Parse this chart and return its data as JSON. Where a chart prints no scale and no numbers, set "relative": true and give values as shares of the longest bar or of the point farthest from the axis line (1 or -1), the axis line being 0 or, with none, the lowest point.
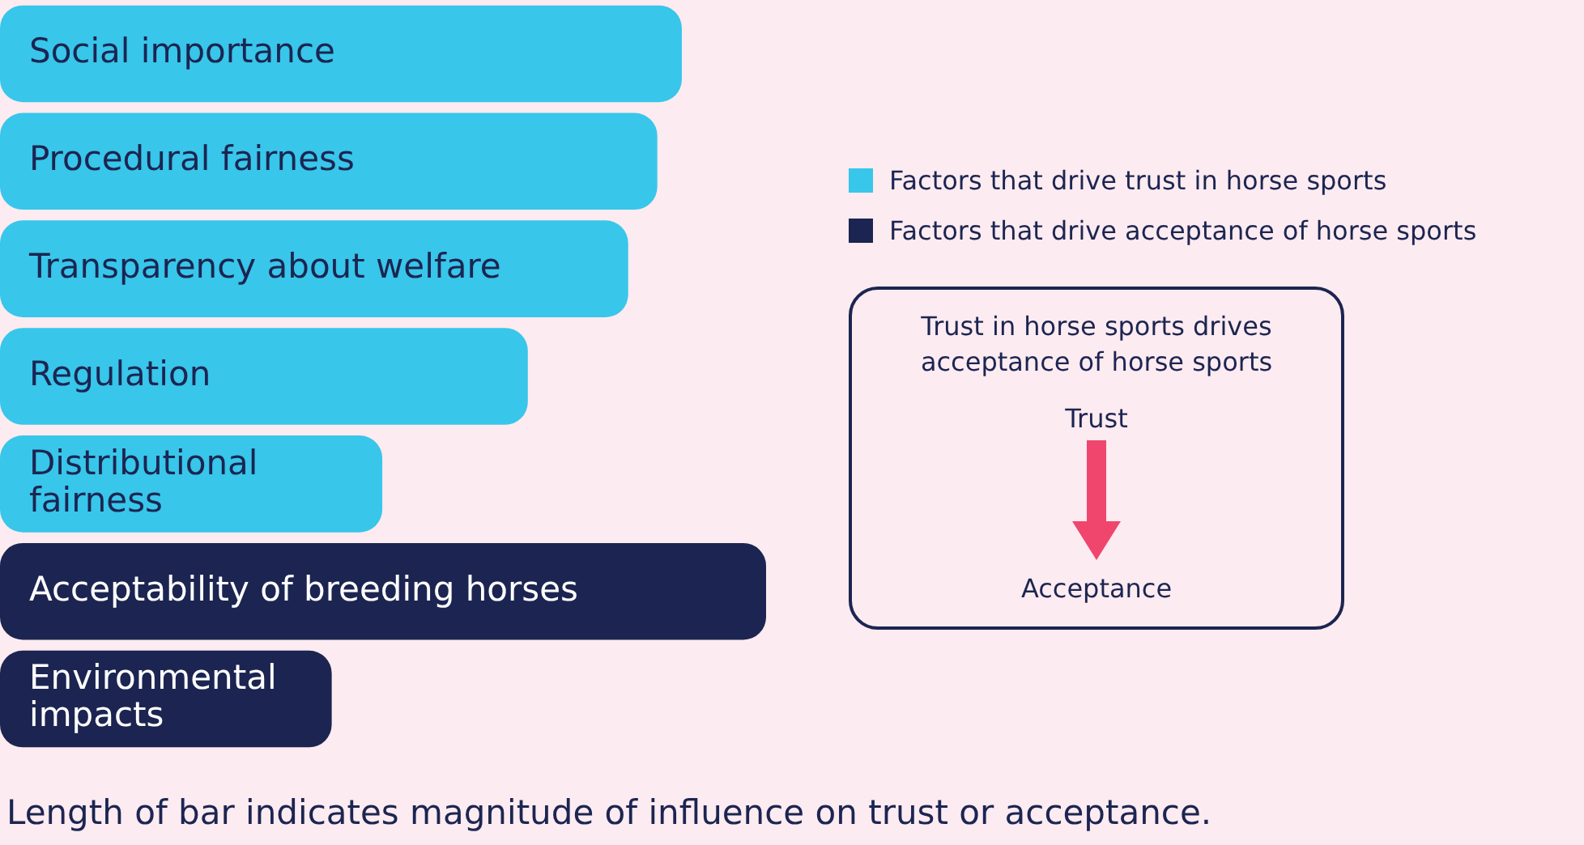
{
  "chart_data": {
    "type": "bar",
    "orientation": "horizontal",
    "relative": true,
    "legend": "right",
    "categories": [
      "Social importance",
      "Procedural fairness",
      "Transparency about welfare",
      "Regulation",
      "Distributional fairness",
      "Acceptability of breeding horses",
      "Environmental impacts"
    ],
    "series": [
      {
        "name": "Factors that drive trust in horse sports",
        "color": "#38c6ea",
        "values": [
          0.89,
          0.858,
          0.82,
          0.689,
          0.499,
          null,
          null
        ]
      },
      {
        "name": "Factors that drive acceptance of horse sports",
        "color": "#1c2551",
        "values": [
          null,
          null,
          null,
          null,
          null,
          1,
          0.433
        ]
      }
    ],
    "annotations": [
      "Trust in horse sports drives acceptance of horse sports",
      "Trust",
      "Acceptance",
      "Length of bar indicates magnitude of influence on trust or acceptance."
    ]
  }
}
